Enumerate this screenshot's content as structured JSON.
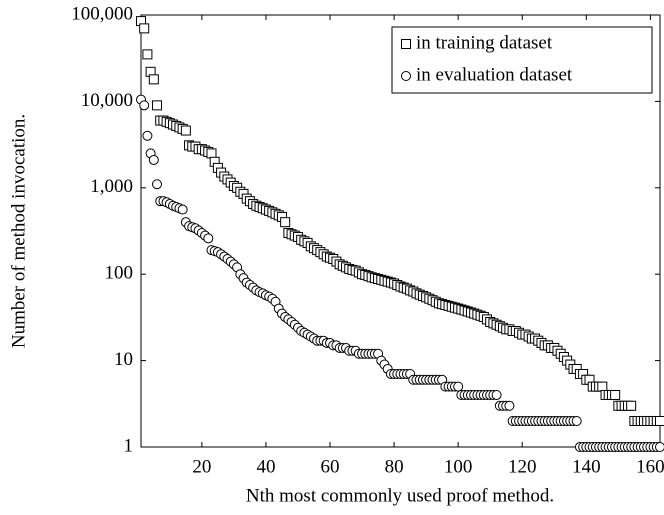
{
  "chart_data": {
    "type": "scatter",
    "xlabel": "Nth most commonly used proof method.",
    "ylabel": "Number of method invocation.",
    "xlim": [
      1,
      163
    ],
    "xticks": [
      20,
      40,
      60,
      80,
      100,
      120,
      140,
      160
    ],
    "ylim": [
      1,
      100000
    ],
    "yscale": "log",
    "yticks": [
      1,
      10,
      100,
      {
        "value": 1000,
        "label": "1,000"
      },
      {
        "value": 10000,
        "label": "10,000"
      },
      {
        "value": 100000,
        "label": "100,000"
      }
    ],
    "legend": "top-right",
    "grid": false,
    "x": [
      1,
      2,
      3,
      4,
      5,
      6,
      7,
      8,
      9,
      10,
      11,
      12,
      13,
      14,
      15,
      16,
      17,
      18,
      19,
      20,
      21,
      22,
      23,
      24,
      25,
      26,
      27,
      28,
      29,
      30,
      31,
      32,
      33,
      34,
      35,
      36,
      37,
      38,
      39,
      40,
      41,
      42,
      43,
      44,
      45,
      46,
      47,
      48,
      49,
      50,
      51,
      52,
      53,
      54,
      55,
      56,
      57,
      58,
      59,
      60,
      61,
      62,
      63,
      64,
      65,
      66,
      67,
      68,
      69,
      70,
      71,
      72,
      73,
      74,
      75,
      76,
      77,
      78,
      79,
      80,
      81,
      82,
      83,
      84,
      85,
      86,
      87,
      88,
      89,
      90,
      91,
      92,
      93,
      94,
      95,
      96,
      97,
      98,
      99,
      100,
      101,
      102,
      103,
      104,
      105,
      106,
      107,
      108,
      109,
      110,
      111,
      112,
      113,
      114,
      115,
      116,
      117,
      118,
      119,
      120,
      121,
      122,
      123,
      124,
      125,
      126,
      127,
      128,
      129,
      130,
      131,
      132,
      133,
      134,
      135,
      136,
      137,
      138,
      139,
      140,
      141,
      142,
      143,
      144,
      145,
      146,
      147,
      148,
      149,
      150,
      151,
      152,
      153,
      154,
      155,
      156,
      157,
      158,
      159,
      160,
      161,
      162,
      163
    ],
    "series": [
      {
        "name": "in training dataset",
        "marker": "square",
        "color": "#000000",
        "values": [
          85000,
          70000,
          35000,
          22000,
          18000,
          9000,
          6000,
          6000,
          5800,
          5600,
          5400,
          5200,
          5000,
          4800,
          4600,
          3100,
          3000,
          3000,
          2800,
          2800,
          2700,
          2600,
          2500,
          2000,
          1700,
          1500,
          1350,
          1250,
          1150,
          1050,
          1000,
          900,
          850,
          750,
          700,
          650,
          620,
          600,
          580,
          560,
          540,
          520,
          500,
          480,
          460,
          400,
          300,
          290,
          280,
          270,
          250,
          240,
          230,
          210,
          200,
          190,
          180,
          170,
          160,
          155,
          150,
          140,
          130,
          125,
          120,
          115,
          112,
          110,
          105,
          100,
          98,
          95,
          92,
          90,
          88,
          86,
          84,
          82,
          80,
          78,
          75,
          72,
          70,
          68,
          65,
          63,
          60,
          58,
          56,
          54,
          52,
          50,
          48,
          46,
          45,
          44,
          43,
          42,
          41,
          40,
          39,
          38,
          37,
          36,
          35,
          34,
          33,
          32,
          30,
          28,
          27,
          26,
          25,
          24,
          23,
          23,
          22,
          22,
          21,
          20,
          20,
          19,
          18,
          18,
          17,
          16,
          15,
          15,
          14,
          14,
          13,
          12,
          11,
          10,
          9,
          8,
          8,
          7,
          7,
          6,
          6,
          5,
          5,
          5,
          5,
          4,
          4,
          4,
          4,
          3,
          3,
          3,
          3,
          3,
          2,
          2,
          2,
          2,
          2,
          2,
          2,
          2,
          2
        ]
      },
      {
        "name": "in evaluation dataset",
        "marker": "circle",
        "color": "#000000",
        "values": [
          10500,
          9000,
          4000,
          2500,
          2100,
          1100,
          700,
          700,
          680,
          650,
          620,
          600,
          580,
          560,
          400,
          360,
          350,
          340,
          320,
          300,
          280,
          260,
          190,
          185,
          180,
          170,
          160,
          150,
          140,
          130,
          120,
          100,
          90,
          80,
          75,
          70,
          65,
          62,
          60,
          57,
          55,
          52,
          48,
          40,
          35,
          32,
          30,
          28,
          26,
          24,
          22,
          21,
          20,
          19,
          18,
          17,
          17,
          17,
          16,
          16,
          15,
          15,
          14,
          14,
          14,
          13,
          13,
          13,
          12,
          12,
          12,
          12,
          12,
          12,
          12,
          10,
          9,
          8,
          7,
          7,
          7,
          7,
          7,
          7,
          7,
          6,
          6,
          6,
          6,
          6,
          6,
          6,
          6,
          6,
          6,
          5,
          5,
          5,
          5,
          5,
          4,
          4,
          4,
          4,
          4,
          4,
          4,
          4,
          4,
          4,
          4,
          4,
          3,
          3,
          3,
          3,
          2,
          2,
          2,
          2,
          2,
          2,
          2,
          2,
          2,
          2,
          2,
          2,
          2,
          2,
          2,
          2,
          2,
          2,
          2,
          2,
          2,
          1,
          1,
          1,
          1,
          1,
          1,
          1,
          1,
          1,
          1,
          1,
          1,
          1,
          1,
          1,
          1,
          1,
          1,
          1,
          1,
          1,
          1,
          1,
          1,
          1,
          1
        ]
      }
    ]
  }
}
